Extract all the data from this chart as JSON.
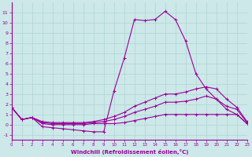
{
  "xlabel": "Windchill (Refroidissement éolien,°C)",
  "x": [
    0,
    1,
    2,
    3,
    4,
    5,
    6,
    7,
    8,
    9,
    10,
    11,
    12,
    13,
    14,
    15,
    16,
    17,
    18,
    19,
    20,
    21,
    22,
    23
  ],
  "line1": [
    1.7,
    0.5,
    0.7,
    -0.2,
    -0.3,
    -0.4,
    -0.5,
    -0.6,
    -0.7,
    -0.7,
    3.3,
    6.5,
    10.3,
    10.2,
    10.3,
    11.1,
    10.3,
    8.2,
    5.0,
    3.5,
    2.5,
    1.5,
    1.0,
    0.1
  ],
  "line2": [
    1.7,
    0.5,
    0.7,
    0.1,
    0.0,
    0.0,
    0.0,
    0.0,
    0.1,
    0.1,
    0.1,
    0.2,
    0.4,
    0.6,
    0.8,
    1.0,
    1.0,
    1.0,
    1.0,
    1.0,
    1.0,
    1.0,
    1.0,
    0.1
  ],
  "line3": [
    1.7,
    0.5,
    0.7,
    0.2,
    0.1,
    0.1,
    0.1,
    0.1,
    0.2,
    0.3,
    0.5,
    0.8,
    1.2,
    1.5,
    1.8,
    2.2,
    2.2,
    2.3,
    2.5,
    2.8,
    2.5,
    1.8,
    1.5,
    0.2
  ],
  "line4": [
    1.7,
    0.5,
    0.7,
    0.3,
    0.2,
    0.2,
    0.2,
    0.2,
    0.3,
    0.5,
    0.8,
    1.2,
    1.8,
    2.2,
    2.6,
    3.0,
    3.0,
    3.2,
    3.5,
    3.7,
    3.5,
    2.5,
    1.7,
    0.3
  ],
  "line_color": "#990099",
  "bg_color": "#cce8e8",
  "grid_color": "#b0d4d4",
  "ylim": [
    -1.5,
    12
  ],
  "xlim": [
    0,
    23
  ],
  "yticks": [
    -1,
    0,
    1,
    2,
    3,
    4,
    5,
    6,
    7,
    8,
    9,
    10,
    11
  ],
  "xticks": [
    0,
    1,
    2,
    3,
    4,
    5,
    6,
    7,
    8,
    9,
    10,
    11,
    12,
    13,
    14,
    15,
    16,
    17,
    18,
    19,
    20,
    21,
    22,
    23
  ],
  "marker": "+",
  "marker_size": 3,
  "linewidth": 0.8
}
